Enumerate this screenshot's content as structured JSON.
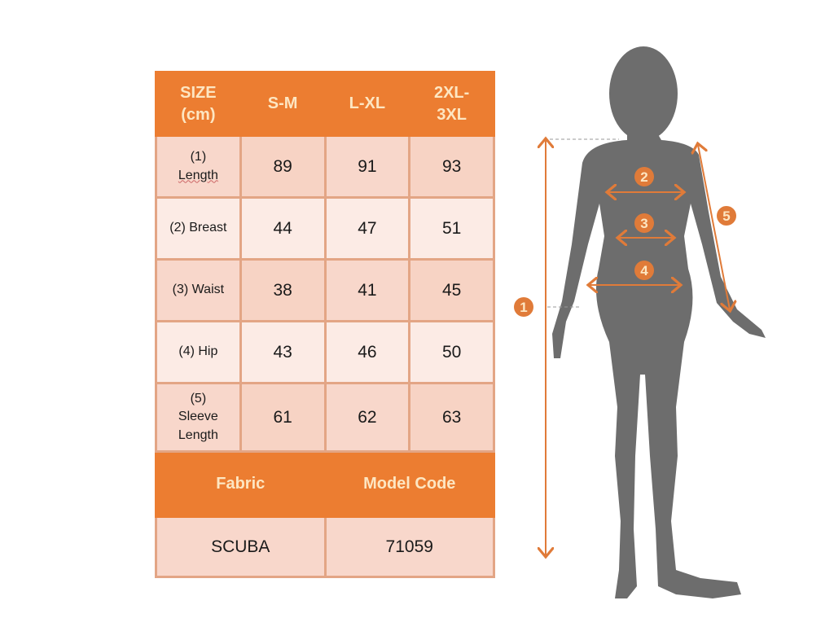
{
  "table": {
    "header": [
      "SIZE (cm)",
      "S-M",
      "L-XL",
      "2XL-3XL"
    ],
    "header_lines": [
      [
        "SIZE",
        "(cm)"
      ],
      [
        "S-M"
      ],
      [
        "L-XL"
      ],
      [
        "2XL-",
        "3XL"
      ]
    ],
    "rows": [
      {
        "label_lines": [
          "(1)",
          "Length"
        ],
        "values": [
          "89",
          "91",
          "93"
        ]
      },
      {
        "label_lines": [
          "(2) Breast"
        ],
        "values": [
          "44",
          "47",
          "51"
        ]
      },
      {
        "label_lines": [
          "(3) Waist"
        ],
        "values": [
          "38",
          "41",
          "45"
        ]
      },
      {
        "label_lines": [
          "(4) Hip"
        ],
        "values": [
          "43",
          "46",
          "50"
        ]
      },
      {
        "label_lines": [
          "(5)",
          "Sleeve",
          "Length"
        ],
        "values": [
          "61",
          "62",
          "63"
        ]
      }
    ],
    "footer_header": [
      "Fabric",
      "Model Code"
    ],
    "footer_values": [
      "SCUBA",
      "71059"
    ]
  },
  "figure": {
    "markers": [
      "1",
      "2",
      "3",
      "4",
      "5"
    ],
    "silhouette_color": "#6d6d6d",
    "accent_color": "#e07b39"
  },
  "colors": {
    "header_bg": "#ec7d31",
    "header_text": "#fde6c2",
    "cell_dark": "#f8d7cb",
    "cell_light": "#fcebe5",
    "border": "#e3a585"
  }
}
